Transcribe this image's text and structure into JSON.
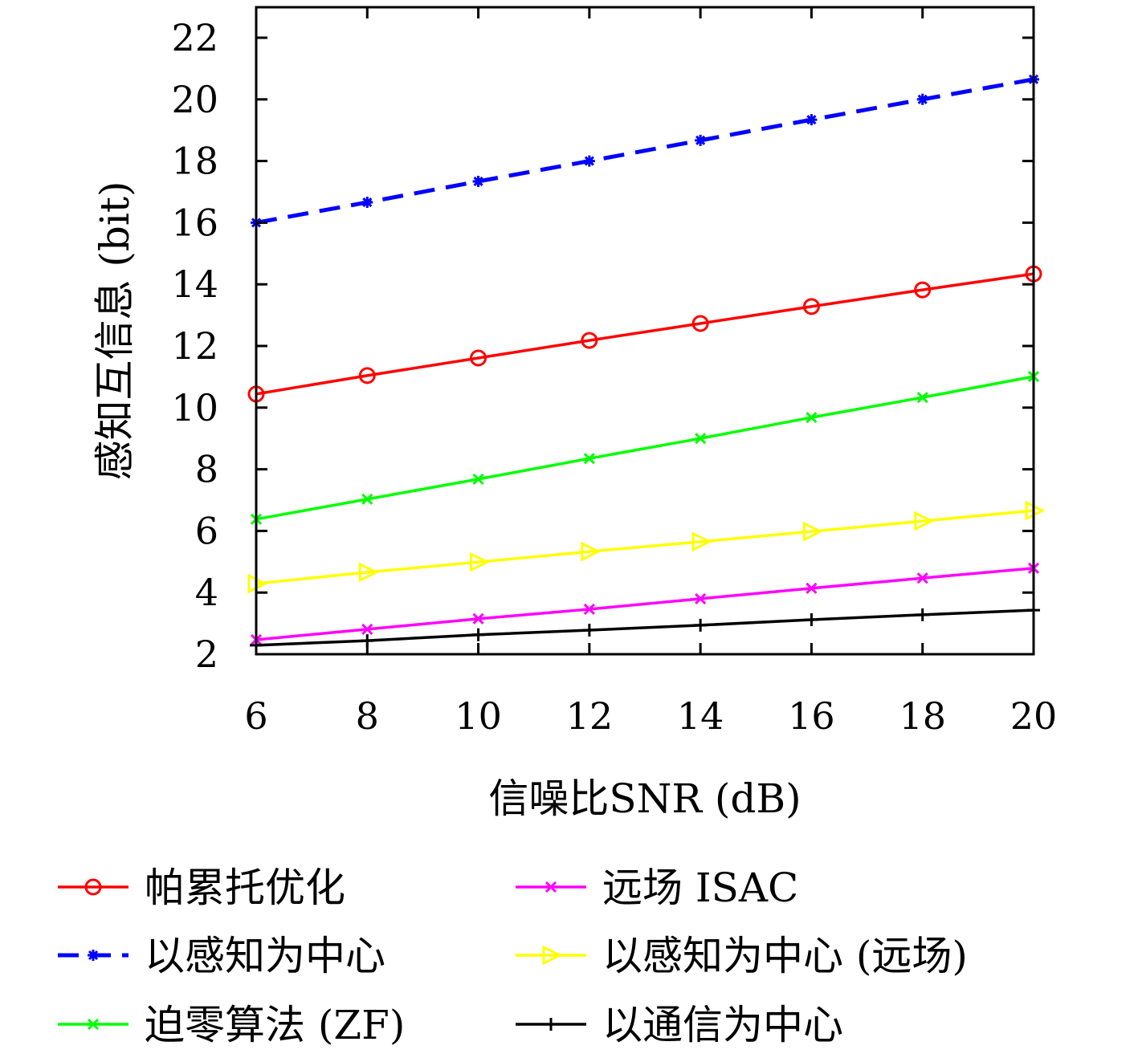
{
  "chart_data": {
    "type": "line",
    "title": "",
    "xlabel": "信噪比SNR (dB)",
    "ylabel": "感知互信息 (bit)",
    "xlim": [
      6,
      20
    ],
    "ylim": [
      2,
      23
    ],
    "xticks": [
      6,
      8,
      10,
      12,
      14,
      16,
      18,
      20
    ],
    "yticks": [
      2,
      4,
      6,
      8,
      10,
      12,
      14,
      16,
      18,
      20,
      22
    ],
    "grid": false,
    "legend_placement": "bottom",
    "x": [
      6,
      8,
      10,
      12,
      14,
      16,
      18,
      20
    ],
    "series": [
      {
        "name": "帕累托优化",
        "color": "#ff0000",
        "marker": "circle",
        "dash": "solid",
        "values": [
          10.44,
          11.04,
          11.61,
          12.18,
          12.73,
          13.28,
          13.82,
          14.34
        ]
      },
      {
        "name": "远场 ISAC",
        "color": "#ff00ff",
        "marker": "x",
        "dash": "solid",
        "values": [
          2.47,
          2.81,
          3.15,
          3.46,
          3.8,
          4.14,
          4.47,
          4.79
        ]
      },
      {
        "name": "以感知为中心",
        "color": "#0000ff",
        "marker": "star",
        "dash": "dashed",
        "values": [
          16.0,
          16.66,
          17.34,
          18.0,
          18.67,
          19.34,
          20.0,
          20.65
        ]
      },
      {
        "name": "以感知为中心 (远场)",
        "color": "#ffff00",
        "marker": "triangle-right",
        "dash": "solid",
        "values": [
          4.29,
          4.66,
          4.99,
          5.33,
          5.65,
          5.98,
          6.32,
          6.66
        ]
      },
      {
        "name": "迫零算法 (ZF)",
        "color": "#00ff00",
        "marker": "x",
        "dash": "solid",
        "values": [
          6.38,
          7.03,
          7.68,
          8.35,
          9.0,
          9.68,
          10.33,
          11.01
        ]
      },
      {
        "name": "以通信为中心",
        "color": "#000000",
        "marker": "plus",
        "dash": "solid",
        "values": [
          2.29,
          2.44,
          2.63,
          2.78,
          2.94,
          3.12,
          3.28,
          3.43
        ]
      }
    ]
  }
}
